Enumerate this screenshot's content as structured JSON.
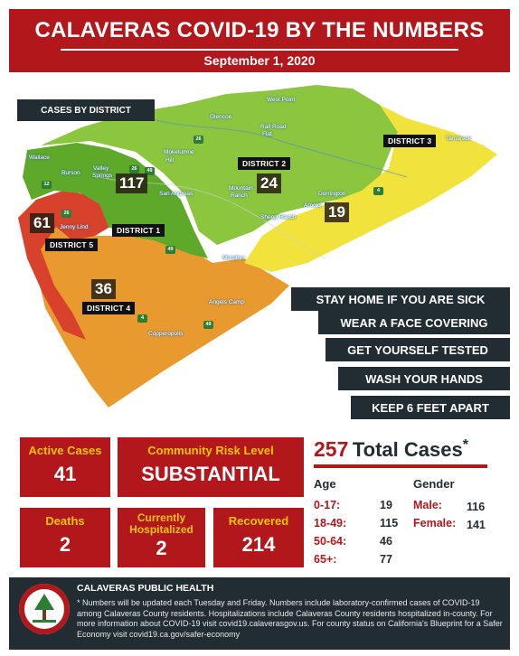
{
  "header": {
    "title": "CALAVERAS COVID-19 BY THE NUMBERS",
    "date": "September 1, 2020"
  },
  "map": {
    "title": "CASES BY DISTRICT",
    "districts": [
      {
        "label": "DISTRICT 1",
        "cases": "117"
      },
      {
        "label": "DISTRICT 2",
        "cases": "24"
      },
      {
        "label": "DISTRICT 3",
        "cases": "19"
      },
      {
        "label": "DISTRICT 4",
        "cases": "36"
      },
      {
        "label": "DISTRICT 5",
        "cases": "61"
      }
    ],
    "places": {
      "west_point": "West Point",
      "glencoe": "Glencoe",
      "rail_road_flat_1": "Rail Road",
      "rail_road_flat_2": "Flat",
      "tamarack": "Tamarack",
      "wallace": "Wallace",
      "burson": "Burson",
      "valley_springs_1": "Valley",
      "valley_springs_2": "Springs",
      "mokelumne_hill_1": "Mokelumne",
      "mokelumne_hill_2": "Hill",
      "san_andreas": "San Andreas",
      "mountain_ranch_1": "Mountain",
      "mountain_ranch_2": "Ranch",
      "sheep_ranch": "Sheep Ranch",
      "dorrington": "Dorrington",
      "arnold": "Arnold",
      "jenny_lind": "Jenny Lind",
      "murphys": "Murphys",
      "angels_camp": "Angels Camp",
      "copperopolis": "Copperopolis"
    },
    "highways": [
      "26",
      "26",
      "12",
      "49",
      "26",
      "4",
      "49",
      "4",
      "49"
    ],
    "colors": {
      "district1": "#5ea82a",
      "district2": "#8cc63f",
      "district3": "#f2e33c",
      "district4": "#e89a2e",
      "district5": "#d8412b"
    }
  },
  "advice": [
    "STAY HOME IF YOU ARE SICK",
    "WEAR A FACE COVERING",
    "GET YOURSELF TESTED",
    "WASH YOUR HANDS",
    "KEEP 6 FEET APART"
  ],
  "stats": {
    "active_cases": {
      "label": "Active Cases",
      "value": "41"
    },
    "risk_level": {
      "label": "Community Risk Level",
      "value": "SUBSTANTIAL"
    },
    "deaths": {
      "label": "Deaths",
      "value": "2"
    },
    "hospitalized": {
      "label_line1": "Currently",
      "label_line2": "Hospitalized",
      "value": "2"
    },
    "recovered": {
      "label": "Recovered",
      "value": "214"
    }
  },
  "totals": {
    "number": "257",
    "label": "Total Cases",
    "asterisk": "*"
  },
  "age": {
    "heading": "Age",
    "rows": [
      {
        "label": "0-17:",
        "value": "19"
      },
      {
        "label": "18-49:",
        "value": "115"
      },
      {
        "label": "50-64:",
        "value": "46"
      },
      {
        "label": "65+:",
        "value": "77"
      }
    ]
  },
  "gender": {
    "heading": "Gender",
    "rows": [
      {
        "label": "Male:",
        "value": "116"
      },
      {
        "label": "Female:",
        "value": "141"
      }
    ]
  },
  "footer": {
    "org": "CALAVERAS PUBLIC HEALTH",
    "note": "* Numbers will be updated each Tuesday and Friday. Numbers include laboratory-confirmed cases of COVID-19 among Calaveras County residents. Hospitalizations include Calaveras County residents hospitalized in-county. For more information about COVID-19 visit covid19.calaverasgov.us. For county status on California's Blueprint for a Safer Economy visit covid19.ca.gov/safer-economy",
    "seal_text": "CALAVERAS COUNTY"
  }
}
